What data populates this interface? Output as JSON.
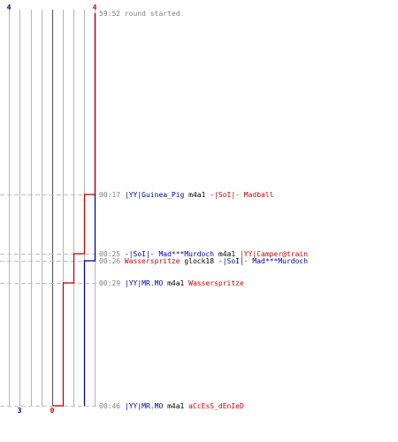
{
  "colors": {
    "blue": "#0000aa",
    "red": "#cc0000",
    "black": "#000000",
    "gray": "#808080",
    "grid": "#b4b4b4",
    "dash": "#c0c0c0"
  },
  "chart_data": {
    "type": "line",
    "y_axis": "round time, counting down from 59:52 to 00:46",
    "x_axis": "frag count, 0 to 4",
    "team_blue": {
      "name": "",
      "final_score": "3",
      "max_label": "4"
    },
    "team_red": {
      "name": "",
      "final_score": "0",
      "max_label": "4"
    },
    "series": [
      {
        "color": "blue",
        "points": [
          {
            "time": "59:52",
            "score": 4
          },
          {
            "time": "00:26",
            "score": 4
          },
          {
            "time": "00:26",
            "score": 3
          },
          {
            "time": "00:46",
            "score": 3
          }
        ]
      },
      {
        "color": "red",
        "points": [
          {
            "time": "59:52",
            "score": 4
          },
          {
            "time": "00:17",
            "score": 4
          },
          {
            "time": "00:17",
            "score": 3
          },
          {
            "time": "00:25",
            "score": 3
          },
          {
            "time": "00:25",
            "score": 2
          },
          {
            "time": "00:29",
            "score": 2
          },
          {
            "time": "00:29",
            "score": 1
          },
          {
            "time": "00:46",
            "score": 1
          },
          {
            "time": "00:46",
            "score": 0
          }
        ]
      }
    ]
  },
  "events": [
    {
      "time": "59:52",
      "parts": [
        {
          "t": "round started",
          "c": "gray"
        }
      ]
    },
    {
      "time": "00:17",
      "parts": [
        {
          "t": "|YY|Guinea_Pig",
          "c": "blue"
        },
        {
          "t": " m4a1 ",
          "c": "black"
        },
        {
          "t": "-|SoI|- Madball",
          "c": "red"
        }
      ]
    },
    {
      "time": "00:25",
      "parts": [
        {
          "t": "-|SoI|- Mad***Murdoch",
          "c": "blue"
        },
        {
          "t": " m4a1 ",
          "c": "black"
        },
        {
          "t": "|YY|Camper@train",
          "c": "red"
        }
      ]
    },
    {
      "time": "00:26",
      "parts": [
        {
          "t": "Wasserspritze",
          "c": "red"
        },
        {
          "t": " glock18 ",
          "c": "black"
        },
        {
          "t": "-|SoI|- Mad***Murdoch",
          "c": "blue"
        }
      ]
    },
    {
      "time": "00:29",
      "parts": [
        {
          "t": "|YY|MR.MO",
          "c": "blue"
        },
        {
          "t": " m4a1 ",
          "c": "black"
        },
        {
          "t": "Wasserspritze",
          "c": "red"
        }
      ]
    },
    {
      "time": "00:46",
      "parts": [
        {
          "t": "|YY|MR.MO",
          "c": "blue"
        },
        {
          "t": " m4a1 ",
          "c": "black"
        },
        {
          "t": "aCcEsS_dEnIeD",
          "c": "red"
        }
      ]
    }
  ]
}
